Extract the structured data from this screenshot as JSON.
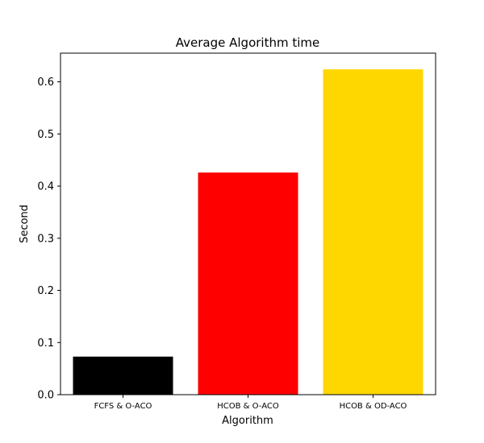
{
  "chart_data": {
    "type": "bar",
    "title": "Average Algorithm time",
    "xlabel": "Algorithm",
    "ylabel": "Second",
    "categories": [
      "FCFS & O-ACO",
      "HCOB & O-ACO",
      "HCOB & OD-ACO"
    ],
    "values": [
      0.073,
      0.426,
      0.624
    ],
    "colors": [
      "#000000",
      "#ff0000",
      "#ffd700"
    ],
    "ylim": [
      0,
      0.655
    ],
    "yticks": [
      0.0,
      0.1,
      0.2,
      0.3,
      0.4,
      0.5,
      0.6
    ],
    "ytick_labels": [
      "0.0",
      "0.1",
      "0.2",
      "0.3",
      "0.4",
      "0.5",
      "0.6"
    ],
    "grid": false,
    "legend": "none"
  }
}
